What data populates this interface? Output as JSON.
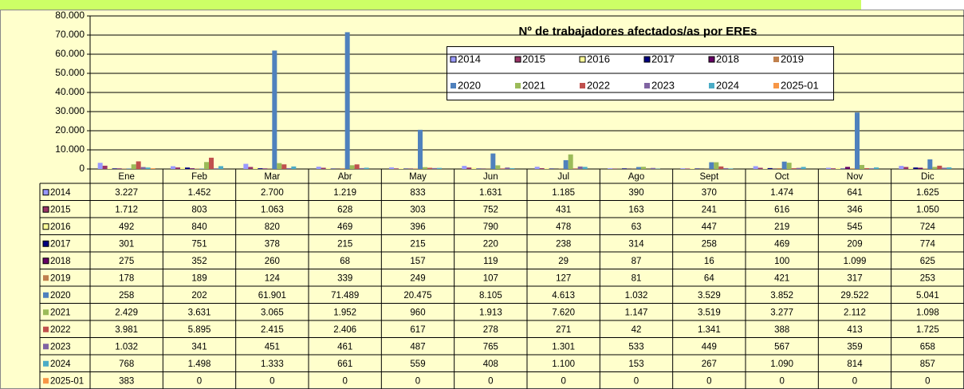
{
  "chart_data": {
    "type": "bar",
    "title": "Nº de trabajadores afectados/as por EREs",
    "categories": [
      "Ene",
      "Feb",
      "Mar",
      "Abr",
      "May",
      "Jun",
      "Jul",
      "Ago",
      "Sept",
      "Oct",
      "Nov",
      "Dic"
    ],
    "ylim": [
      0,
      80000
    ],
    "yticks": [
      0,
      {
        "value": 10000,
        "label": "10.000"
      },
      {
        "value": 20000,
        "label": "20.000"
      },
      {
        "value": 30000,
        "label": "30.000"
      },
      {
        "value": 40000,
        "label": "40.000"
      },
      {
        "value": 50000,
        "label": "50.000"
      },
      {
        "value": 60000,
        "label": "60.000"
      },
      {
        "value": 70000,
        "label": "70.000"
      },
      {
        "value": 80000,
        "label": "80.000"
      }
    ],
    "grid": true,
    "series": [
      {
        "name": "2014",
        "color": "#9999ff",
        "values": [
          3227,
          1452,
          2700,
          1219,
          833,
          1631,
          1185,
          390,
          370,
          1474,
          641,
          1625
        ],
        "value_labels": [
          "3.227",
          "1.452",
          "2.700",
          "1.219",
          "833",
          "1.631",
          "1.185",
          "390",
          "370",
          "1.474",
          "641",
          "1.625"
        ]
      },
      {
        "name": "2015",
        "color": "#993366",
        "values": [
          1712,
          803,
          1063,
          628,
          303,
          752,
          431,
          163,
          241,
          616,
          346,
          1050
        ],
        "value_labels": [
          "1.712",
          "803",
          "1.063",
          "628",
          "303",
          "752",
          "431",
          "163",
          "241",
          "616",
          "346",
          "1.050"
        ]
      },
      {
        "name": "2016",
        "color": "#ffff99",
        "values": [
          492,
          840,
          820,
          469,
          396,
          790,
          478,
          63,
          447,
          219,
          545,
          724
        ],
        "value_labels": [
          "492",
          "840",
          "820",
          "469",
          "396",
          "790",
          "478",
          "63",
          "447",
          "219",
          "545",
          "724"
        ]
      },
      {
        "name": "2017",
        "color": "#000080",
        "values": [
          301,
          751,
          378,
          215,
          215,
          220,
          238,
          314,
          258,
          469,
          209,
          774
        ],
        "value_labels": [
          "301",
          "751",
          "378",
          "215",
          "215",
          "220",
          "238",
          "314",
          "258",
          "469",
          "209",
          "774"
        ]
      },
      {
        "name": "2018",
        "color": "#660066",
        "values": [
          275,
          352,
          260,
          68,
          157,
          119,
          29,
          87,
          16,
          100,
          1099,
          625
        ],
        "value_labels": [
          "275",
          "352",
          "260",
          "68",
          "157",
          "119",
          "29",
          "87",
          "16",
          "100",
          "1.099",
          "625"
        ]
      },
      {
        "name": "2019",
        "color": "#c0804d",
        "values": [
          178,
          189,
          124,
          339,
          249,
          107,
          127,
          81,
          64,
          421,
          317,
          253
        ],
        "value_labels": [
          "178",
          "189",
          "124",
          "339",
          "249",
          "107",
          "127",
          "81",
          "64",
          "421",
          "317",
          "253"
        ]
      },
      {
        "name": "2020",
        "color": "#4f81bd",
        "values": [
          258,
          202,
          61901,
          71489,
          20475,
          8105,
          4613,
          1032,
          3529,
          3852,
          29522,
          5041
        ],
        "value_labels": [
          "258",
          "202",
          "61.901",
          "71.489",
          "20.475",
          "8.105",
          "4.613",
          "1.032",
          "3.529",
          "3.852",
          "29.522",
          "5.041"
        ]
      },
      {
        "name": "2021",
        "color": "#9bbb59",
        "values": [
          2429,
          3631,
          3065,
          1952,
          960,
          1913,
          7620,
          1147,
          3519,
          3277,
          2112,
          1098
        ],
        "value_labels": [
          "2.429",
          "3.631",
          "3.065",
          "1.952",
          "960",
          "1.913",
          "7.620",
          "1.147",
          "3.519",
          "3.277",
          "2.112",
          "1.098"
        ]
      },
      {
        "name": "2022",
        "color": "#c0504d",
        "values": [
          3981,
          5895,
          2415,
          2406,
          617,
          278,
          271,
          42,
          1341,
          388,
          413,
          1725
        ],
        "value_labels": [
          "3.981",
          "5.895",
          "2.415",
          "2.406",
          "617",
          "278",
          "271",
          "42",
          "1.341",
          "388",
          "413",
          "1.725"
        ]
      },
      {
        "name": "2023",
        "color": "#8064a2",
        "values": [
          1032,
          341,
          451,
          461,
          487,
          765,
          1301,
          533,
          449,
          567,
          359,
          658
        ],
        "value_labels": [
          "1.032",
          "341",
          "451",
          "461",
          "487",
          "765",
          "1.301",
          "533",
          "449",
          "567",
          "359",
          "658"
        ]
      },
      {
        "name": "2024",
        "color": "#4bacc6",
        "values": [
          768,
          1498,
          1333,
          661,
          559,
          408,
          1100,
          153,
          267,
          1090,
          814,
          857
        ],
        "value_labels": [
          "768",
          "1.498",
          "1.333",
          "661",
          "559",
          "408",
          "1.100",
          "153",
          "267",
          "1.090",
          "814",
          "857"
        ]
      },
      {
        "name": "2025-01",
        "color": "#f79646",
        "values": [
          383,
          0,
          0,
          0,
          0,
          0,
          0,
          0,
          0,
          0,
          0,
          0
        ],
        "value_labels": [
          "383",
          "0",
          "0",
          "0",
          "0",
          "0",
          "0",
          "0",
          "0",
          "0",
          "0",
          "0"
        ]
      }
    ]
  }
}
